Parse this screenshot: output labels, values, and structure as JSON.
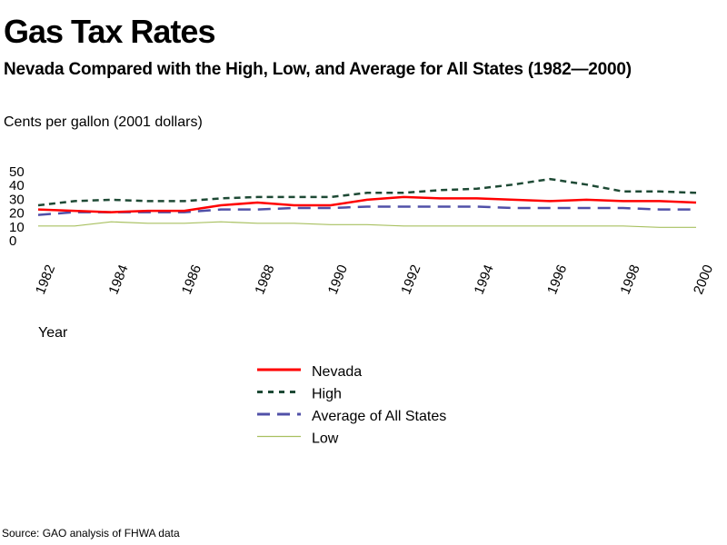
{
  "chart_data": {
    "type": "line",
    "title": "Gas Tax Rates",
    "subtitle": "Nevada Compared with the High, Low, and Average for All States (1982—2000)",
    "ylabel": "Cents per gallon (2001 dollars)",
    "xlabel": "Year",
    "source": "Source: GAO analysis of FHWA data",
    "ylim": [
      0,
      50
    ],
    "yticks": [
      0,
      10,
      20,
      30,
      40,
      50
    ],
    "xlim": [
      1982,
      2000
    ],
    "xticks": [
      1982,
      1984,
      1986,
      1988,
      1990,
      1992,
      1994,
      1996,
      1998,
      2000
    ],
    "legend_position": "bottom",
    "grid": false,
    "x": [
      1982,
      1983,
      1984,
      1985,
      1986,
      1987,
      1988,
      1989,
      1990,
      1991,
      1992,
      1993,
      1994,
      1995,
      1996,
      1997,
      1998,
      1999,
      2000
    ],
    "series": [
      {
        "name": "Nevada",
        "color": "#ff0000",
        "dash": "solid",
        "values": [
          22,
          21,
          20,
          21,
          21,
          25,
          27,
          25,
          25,
          29,
          31,
          30,
          30,
          29,
          28,
          29,
          28,
          28,
          27
        ]
      },
      {
        "name": "High",
        "color": "#1e4a35",
        "dash": "dotted",
        "values": [
          25,
          28,
          29,
          28,
          28,
          30,
          31,
          31,
          31,
          34,
          34,
          36,
          37,
          40,
          44,
          40,
          35,
          35,
          34
        ]
      },
      {
        "name": "Average of All States",
        "color": "#5050a8",
        "dash": "dashed",
        "values": [
          18,
          20,
          20,
          20,
          20,
          22,
          22,
          23,
          23,
          24,
          24,
          24,
          24,
          23,
          23,
          23,
          23,
          22,
          22
        ]
      },
      {
        "name": "Low",
        "color": "#a8c060",
        "dash": "solid",
        "values": [
          10,
          10,
          13,
          12,
          12,
          13,
          12,
          12,
          11,
          11,
          10,
          10,
          10,
          10,
          10,
          10,
          10,
          9,
          9
        ]
      }
    ]
  }
}
